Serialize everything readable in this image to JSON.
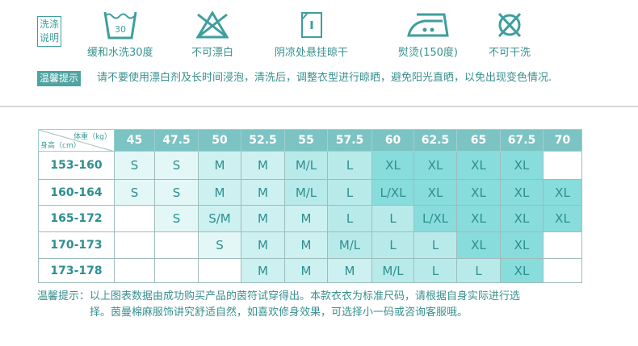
{
  "care": {
    "title": "洗涤说明",
    "title_lines": [
      "洗涤",
      "说明"
    ],
    "icons": [
      {
        "icon": "wash-30-icon",
        "label": "缓和水洗30度",
        "badge": "30"
      },
      {
        "icon": "no-bleach-icon",
        "label": "不可漂白"
      },
      {
        "icon": "line-dry-shade-icon",
        "label": "阴凉处悬挂晾干"
      },
      {
        "icon": "iron-medium-icon",
        "label": "熨烫(150度)"
      },
      {
        "icon": "no-dry-clean-icon",
        "label": "不可干洗"
      }
    ],
    "tip_label": "温馨提示",
    "tip_text": "请不要使用漂白剂及长时间浸泡，清洗后，调整衣型进行晾晒，避免阳光直晒，以免出现变色情况."
  },
  "size_table": {
    "corner_weight": "体重（kg）",
    "corner_height": "身高（cm）",
    "weights": [
      "45",
      "47.5",
      "50",
      "52.5",
      "55",
      "57.5",
      "60",
      "62.5",
      "65",
      "67.5",
      "70"
    ],
    "rows": [
      {
        "height": "153-160",
        "sizes": [
          "S",
          "S",
          "M",
          "M",
          "M/L",
          "L",
          "XL",
          "XL",
          "XL",
          "XL",
          ""
        ]
      },
      {
        "height": "160-164",
        "sizes": [
          "S",
          "S",
          "M",
          "M",
          "M/L",
          "L",
          "L/XL",
          "XL",
          "XL",
          "XL",
          "XL"
        ]
      },
      {
        "height": "165-172",
        "sizes": [
          "",
          "S",
          "S/M",
          "M",
          "M",
          "L",
          "L",
          "L/XL",
          "XL",
          "XL",
          "XL"
        ]
      },
      {
        "height": "170-173",
        "sizes": [
          "",
          "",
          "S",
          "M",
          "M",
          "M/L",
          "L",
          "L",
          "XL",
          "XL",
          ""
        ]
      },
      {
        "height": "173-178",
        "sizes": [
          "",
          "",
          "",
          "M",
          "M",
          "M",
          "M/L",
          "L",
          "L",
          "XL",
          ""
        ]
      }
    ],
    "colors": {
      "header": "#7cc3c3",
      "text": "#2e8f8f",
      "accent": "#4fa3a3"
    }
  },
  "footer": {
    "label": "温馨提示：",
    "text": "以上图表数据由成功购买产品的茵符试穿得出。本款衣衣为标准尺码，请根据自身实际进行选择。茵曼棉麻服饰讲究舒适自然，如喜欢修身效果，可选择小一码或咨询客服哦。"
  }
}
